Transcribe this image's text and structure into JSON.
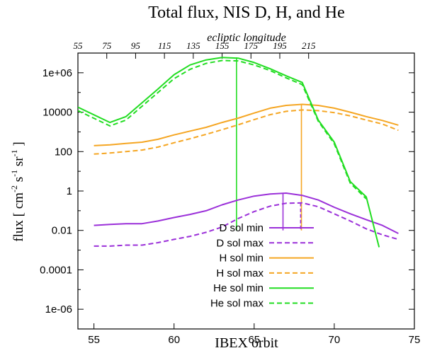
{
  "chart_data": {
    "type": "line",
    "title": "Total flux, NIS D, H, and He",
    "xlabel": "IBEX orbit",
    "ylabel": "flux [ cm⁻² s⁻¹ sr⁻¹ ]",
    "ylabel_parts": {
      "pre": "flux [ cm",
      "e1": "-2",
      "mid1": " s",
      "e2": "-1",
      "mid2": " sr",
      "e3": "-1",
      "post": " ]"
    },
    "x2label": "ecliptic longitude",
    "xlim": [
      54,
      75
    ],
    "ylim": [
      1e-07,
      10000000.0
    ],
    "y_scale": "log",
    "x_ticks": [
      55,
      60,
      65,
      70,
      75
    ],
    "y_ticks": [
      {
        "value": 1000000.0,
        "label": "1e+06"
      },
      {
        "value": 10000.0,
        "label": "10000"
      },
      {
        "value": 100,
        "label": "100"
      },
      {
        "value": 1,
        "label": "1"
      },
      {
        "value": 0.01,
        "label": "0.01"
      },
      {
        "value": 0.0001,
        "label": "0.0001"
      },
      {
        "value": 1e-06,
        "label": "1e-06"
      }
    ],
    "x2_ticks": [
      55,
      75,
      95,
      115,
      135,
      155,
      175,
      195,
      215
    ],
    "x2_tick_orbits": [
      54,
      55.8,
      57.6,
      59.4,
      61.2,
      63.0,
      64.8,
      66.6,
      68.4
    ],
    "grid": false,
    "legend_position": "bottom-right",
    "series": [
      {
        "name": "D  sol  min",
        "color": "#9b30d9",
        "dash": "solid",
        "x": [
          55,
          56,
          57,
          58,
          59,
          60,
          61,
          62,
          63,
          64,
          65,
          66,
          67,
          68,
          69,
          70,
          71,
          72,
          73,
          74
        ],
        "y": [
          0.018,
          0.02,
          0.022,
          0.022,
          0.03,
          0.045,
          0.065,
          0.1,
          0.2,
          0.35,
          0.55,
          0.7,
          0.78,
          0.6,
          0.35,
          0.15,
          0.07,
          0.035,
          0.018,
          0.007
        ]
      },
      {
        "name": "D  sol max",
        "color": "#9b30d9",
        "dash": "dashed",
        "x": [
          55,
          56,
          57,
          58,
          59,
          60,
          61,
          62,
          63,
          64,
          65,
          66,
          67,
          68,
          69,
          70,
          71,
          72,
          73,
          74
        ],
        "y": [
          0.0016,
          0.0016,
          0.0018,
          0.0018,
          0.0024,
          0.0035,
          0.005,
          0.008,
          0.015,
          0.04,
          0.09,
          0.17,
          0.24,
          0.25,
          0.16,
          0.07,
          0.03,
          0.012,
          0.006,
          0.0035
        ]
      },
      {
        "name": "H  sol  min",
        "color": "#f5a623",
        "dash": "solid",
        "x": [
          55,
          56,
          57,
          58,
          59,
          60,
          61,
          62,
          63,
          64,
          65,
          66,
          67,
          68,
          69,
          70,
          71,
          72,
          73,
          74
        ],
        "y": [
          200,
          220,
          260,
          300,
          420,
          700,
          1100,
          1700,
          3000,
          5000,
          9000,
          16000,
          22000,
          25000,
          22000,
          16000,
          10000,
          6000,
          3800,
          2200
        ]
      },
      {
        "name": "H  sol max",
        "color": "#f5a623",
        "dash": "dashed",
        "x": [
          55,
          56,
          57,
          58,
          59,
          60,
          61,
          62,
          63,
          64,
          65,
          66,
          67,
          68,
          69,
          70,
          71,
          72,
          73,
          74
        ],
        "y": [
          75,
          85,
          100,
          120,
          170,
          280,
          450,
          750,
          1300,
          2300,
          4200,
          7500,
          11000,
          13000,
          12000,
          9500,
          6500,
          4000,
          2500,
          1200
        ]
      },
      {
        "name": "He sol  min",
        "color": "#22dd22",
        "dash": "solid",
        "x": [
          54,
          56,
          57,
          59,
          60,
          61,
          62,
          63,
          64,
          65,
          66,
          67,
          68,
          69,
          70,
          71,
          72,
          72.8
        ],
        "y": [
          18000,
          3000,
          6000,
          150000,
          800000,
          2500000,
          4500000,
          6000000,
          5500000,
          3300000,
          1600000,
          700000,
          320000,
          4000,
          300,
          3,
          0.5,
          0.0014
        ]
      },
      {
        "name": "He sol max",
        "color": "#22dd22",
        "dash": "dashed",
        "x": [
          54,
          56,
          57,
          59,
          60,
          61,
          62,
          63,
          64,
          65,
          66,
          67,
          68,
          69,
          70,
          71,
          72
        ],
        "y": [
          12000,
          2000,
          4000,
          100000,
          500000,
          1500000,
          3000000,
          4200000,
          4000000,
          2500000,
          1300000,
          550000,
          250000,
          3500,
          250,
          2.5,
          0.4
        ]
      }
    ],
    "verticals": [
      {
        "x": 63.9,
        "y_top": 6000000,
        "color": "#22dd22"
      },
      {
        "x": 67.95,
        "y_top": 25000,
        "color": "#f5a623"
      },
      {
        "x": 66.8,
        "y_top": 0.8,
        "color": "#9b30d9",
        "dash": "solid"
      },
      {
        "x": 67.9,
        "y_top": 0.25,
        "color": "#9b30d9",
        "dash": "dashed"
      }
    ]
  }
}
